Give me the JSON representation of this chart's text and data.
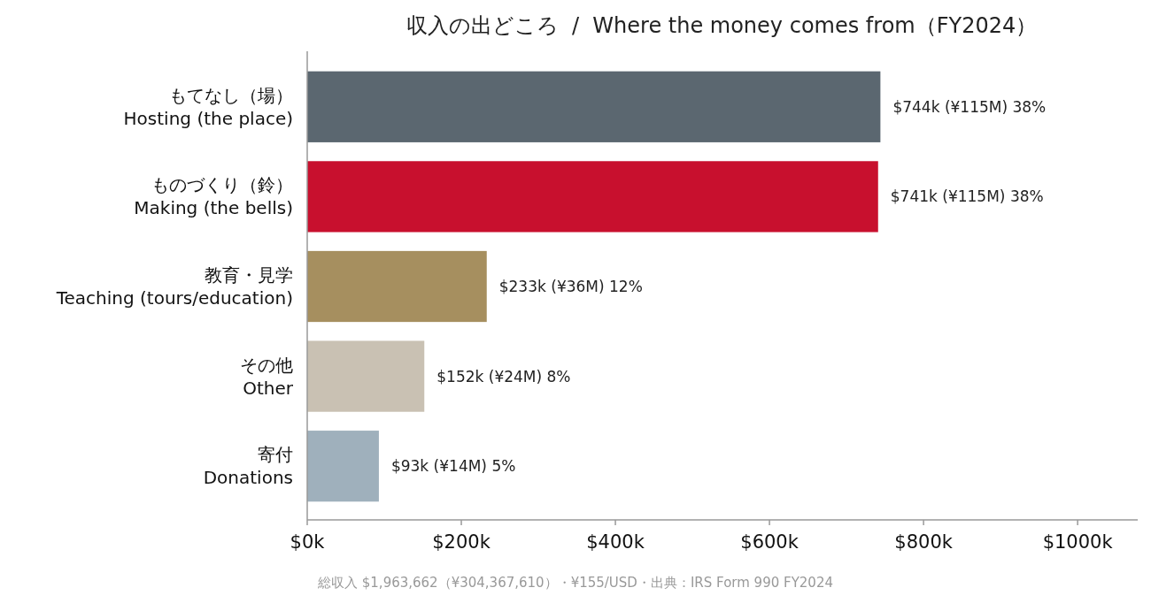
{
  "chart_data": {
    "type": "bar",
    "orientation": "horizontal",
    "title": "収入の出どころ  /  Where the money comes from（FY2024）",
    "categories": [
      "もてなし（場）\nHosting (the place)",
      "ものづくり（鈴）\nMaking (the bells)",
      "教育・見学\nTeaching (tours/education)",
      "その他\nOther",
      "寄付\nDonations"
    ],
    "values": [
      744000,
      741000,
      233000,
      152000,
      93000
    ],
    "colors": [
      "#5b6770",
      "#c8102e",
      "#a68f5f",
      "#c9c1b3",
      "#9fb0bc"
    ],
    "value_labels": [
      "$744k (¥115M) 38%",
      "$741k (¥115M) 38%",
      "$233k (¥36M) 12%",
      "$152k (¥24M) 8%",
      "$93k (¥14M) 5%"
    ],
    "xlim": [
      0,
      1078000
    ],
    "xticks": [
      {
        "value": 0,
        "label": "$0k"
      },
      {
        "value": 200000,
        "label": "$200k"
      },
      {
        "value": 400000,
        "label": "$400k"
      },
      {
        "value": 600000,
        "label": "$600k"
      },
      {
        "value": 800000,
        "label": "$800k"
      },
      {
        "value": 1000000,
        "label": "$1000k"
      }
    ],
    "grid": false,
    "annotations": [
      "総収入 $1,963,662（¥304,367,610）・¥155/USD・出典：IRS Form 990 FY2024"
    ]
  }
}
